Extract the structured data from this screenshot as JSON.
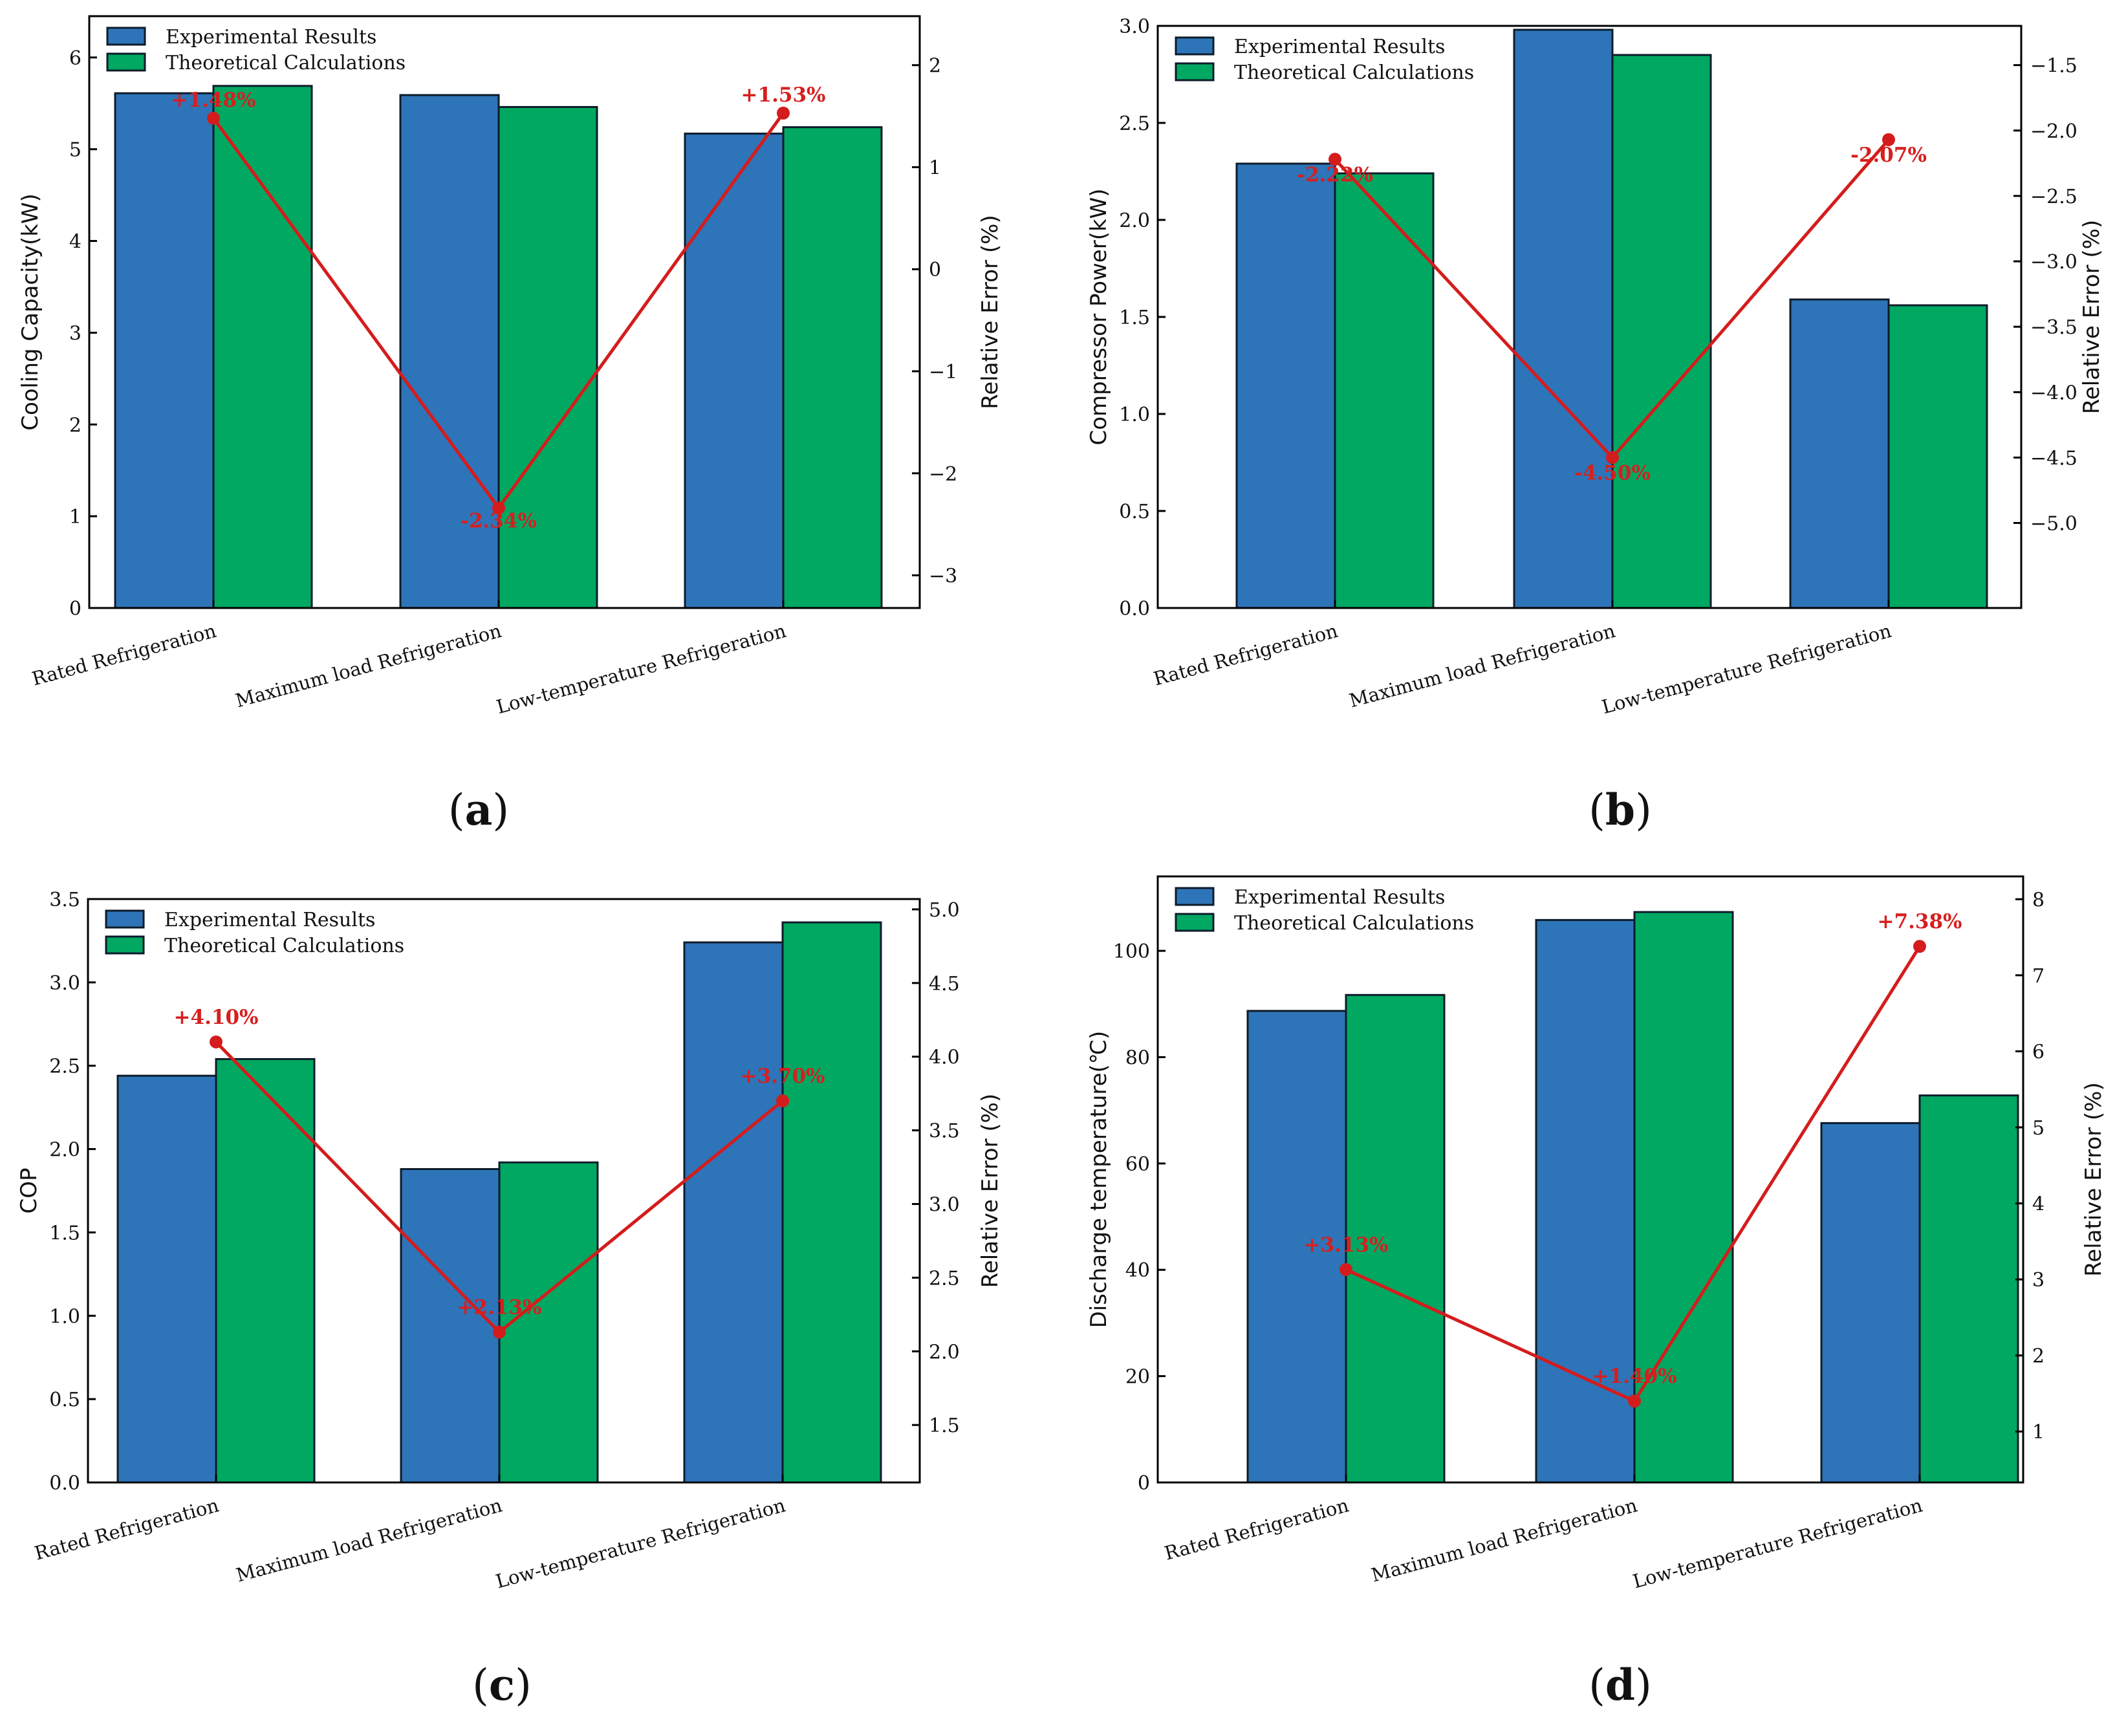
{
  "colors": {
    "experimental": "#2e74b8",
    "theoretical": "#00a862",
    "error": "#d41c1c"
  },
  "legend": {
    "experimental": "Experimental Results",
    "theoretical": "Theoretical Calculations"
  },
  "chart_data": [
    {
      "panel": "(a)",
      "type": "bar",
      "categories": [
        "Rated Refrigeration",
        "Maximum load Refrigeration",
        "Low-temperature Refrigeration"
      ],
      "series": [
        {
          "name": "Experimental Results",
          "values": [
            5.61,
            5.59,
            5.17
          ]
        },
        {
          "name": "Theoretical Calculations",
          "values": [
            5.69,
            5.46,
            5.24
          ]
        }
      ],
      "error": {
        "name": "Relative Error (%)",
        "values": [
          1.48,
          -2.34,
          1.53
        ],
        "labels": [
          "+1.48%",
          "-2.34%",
          "+1.53%"
        ]
      },
      "ylabel": "Cooling Capacity(kW)",
      "y2label": "Relative Error (%)",
      "ylim": [
        0,
        6.45
      ],
      "yticks": [
        0,
        1,
        2,
        3,
        4,
        5,
        6
      ],
      "ytick_labels": [
        "0",
        "1",
        "2",
        "3",
        "4",
        "5",
        "6"
      ],
      "y2lim": [
        -3.32,
        2.48
      ],
      "y2ticks": [
        -3,
        -2,
        -1,
        0,
        1,
        2
      ],
      "y2tick_labels": [
        "−3",
        "−2",
        "−1",
        "0",
        "1",
        "2"
      ]
    },
    {
      "panel": "(b)",
      "type": "bar",
      "categories": [
        "Rated Refrigeration",
        "Maximum load Refrigeration",
        "Low-temperature Refrigeration"
      ],
      "series": [
        {
          "name": "Experimental Results",
          "values": [
            2.29,
            2.98,
            1.59
          ]
        },
        {
          "name": "Theoretical Calculations",
          "values": [
            2.24,
            2.85,
            1.56
          ]
        }
      ],
      "error": {
        "name": "Relative Error (%)",
        "values": [
          -2.22,
          -4.5,
          -2.07
        ],
        "labels": [
          "-2.22%",
          "-4.50%",
          "-2.07%"
        ]
      },
      "ylabel": "Compressor Power(kW)",
      "y2label": "Relative Error (%)",
      "ylim": [
        0,
        3.0
      ],
      "yticks": [
        0,
        0.5,
        1.0,
        1.5,
        2.0,
        2.5,
        3.0
      ],
      "ytick_labels": [
        "0.0",
        "0.5",
        "1.0",
        "1.5",
        "2.0",
        "2.5",
        "3.0"
      ],
      "y2lim": [
        -5.65,
        -1.2
      ],
      "y2ticks": [
        -5.0,
        -4.5,
        -4.0,
        -3.5,
        -3.0,
        -2.5,
        -2.0,
        -1.5
      ],
      "y2tick_labels": [
        "−5.0",
        "−4.5",
        "−4.0",
        "−3.5",
        "−3.0",
        "−2.5",
        "−2.0",
        "−1.5"
      ]
    },
    {
      "panel": "(c)",
      "type": "bar",
      "categories": [
        "Rated Refrigeration",
        "Maximum load Refrigeration",
        "Low-temperature Refrigeration"
      ],
      "series": [
        {
          "name": "Experimental Results",
          "values": [
            2.44,
            1.88,
            3.24
          ]
        },
        {
          "name": "Theoretical Calculations",
          "values": [
            2.54,
            1.92,
            3.36
          ]
        }
      ],
      "error": {
        "name": "Relative Error (%)",
        "values": [
          4.1,
          2.13,
          3.7
        ],
        "labels": [
          "+4.10%",
          "+2.13%",
          "+3.70%"
        ]
      },
      "ylabel": "COP",
      "y2label": "Relative Error (%)",
      "ylim": [
        0,
        3.5
      ],
      "yticks": [
        0,
        0.5,
        1.0,
        1.5,
        2.0,
        2.5,
        3.0,
        3.5
      ],
      "ytick_labels": [
        "0.0",
        "0.5",
        "1.0",
        "1.5",
        "2.0",
        "2.5",
        "3.0",
        "3.5"
      ],
      "y2lim": [
        1.11,
        5.07
      ],
      "y2ticks": [
        1.5,
        2.0,
        2.5,
        3.0,
        3.5,
        4.0,
        4.5,
        5.0
      ],
      "y2tick_labels": [
        "1.5",
        "2.0",
        "2.5",
        "3.0",
        "3.5",
        "4.0",
        "4.5",
        "5.0"
      ]
    },
    {
      "panel": "(d)",
      "type": "bar",
      "categories": [
        "Rated Refrigeration",
        "Maximum load Refrigeration",
        "Low-temperature Refrigeration"
      ],
      "series": [
        {
          "name": "Experimental Results",
          "values": [
            88.7,
            105.8,
            67.6
          ]
        },
        {
          "name": "Theoretical Calculations",
          "values": [
            91.7,
            107.3,
            72.8
          ]
        }
      ],
      "error": {
        "name": "Relative Error (%)",
        "values": [
          3.13,
          1.4,
          7.38
        ],
        "labels": [
          "+3.13%",
          "+1.40%",
          "+7.38%"
        ]
      },
      "ylabel": "Discharge temperature(℃)",
      "y2label": "Relative Error (%)",
      "ylim": [
        0,
        114
      ],
      "yticks": [
        0,
        20,
        40,
        60,
        80,
        100
      ],
      "ytick_labels": [
        "0",
        "20",
        "40",
        "60",
        "80",
        "100"
      ],
      "y2lim": [
        0.33,
        8.3
      ],
      "y2ticks": [
        1,
        2,
        3,
        4,
        5,
        6,
        7,
        8
      ],
      "y2tick_labels": [
        "1",
        "2",
        "3",
        "4",
        "5",
        "6",
        "7",
        "8"
      ]
    }
  ]
}
